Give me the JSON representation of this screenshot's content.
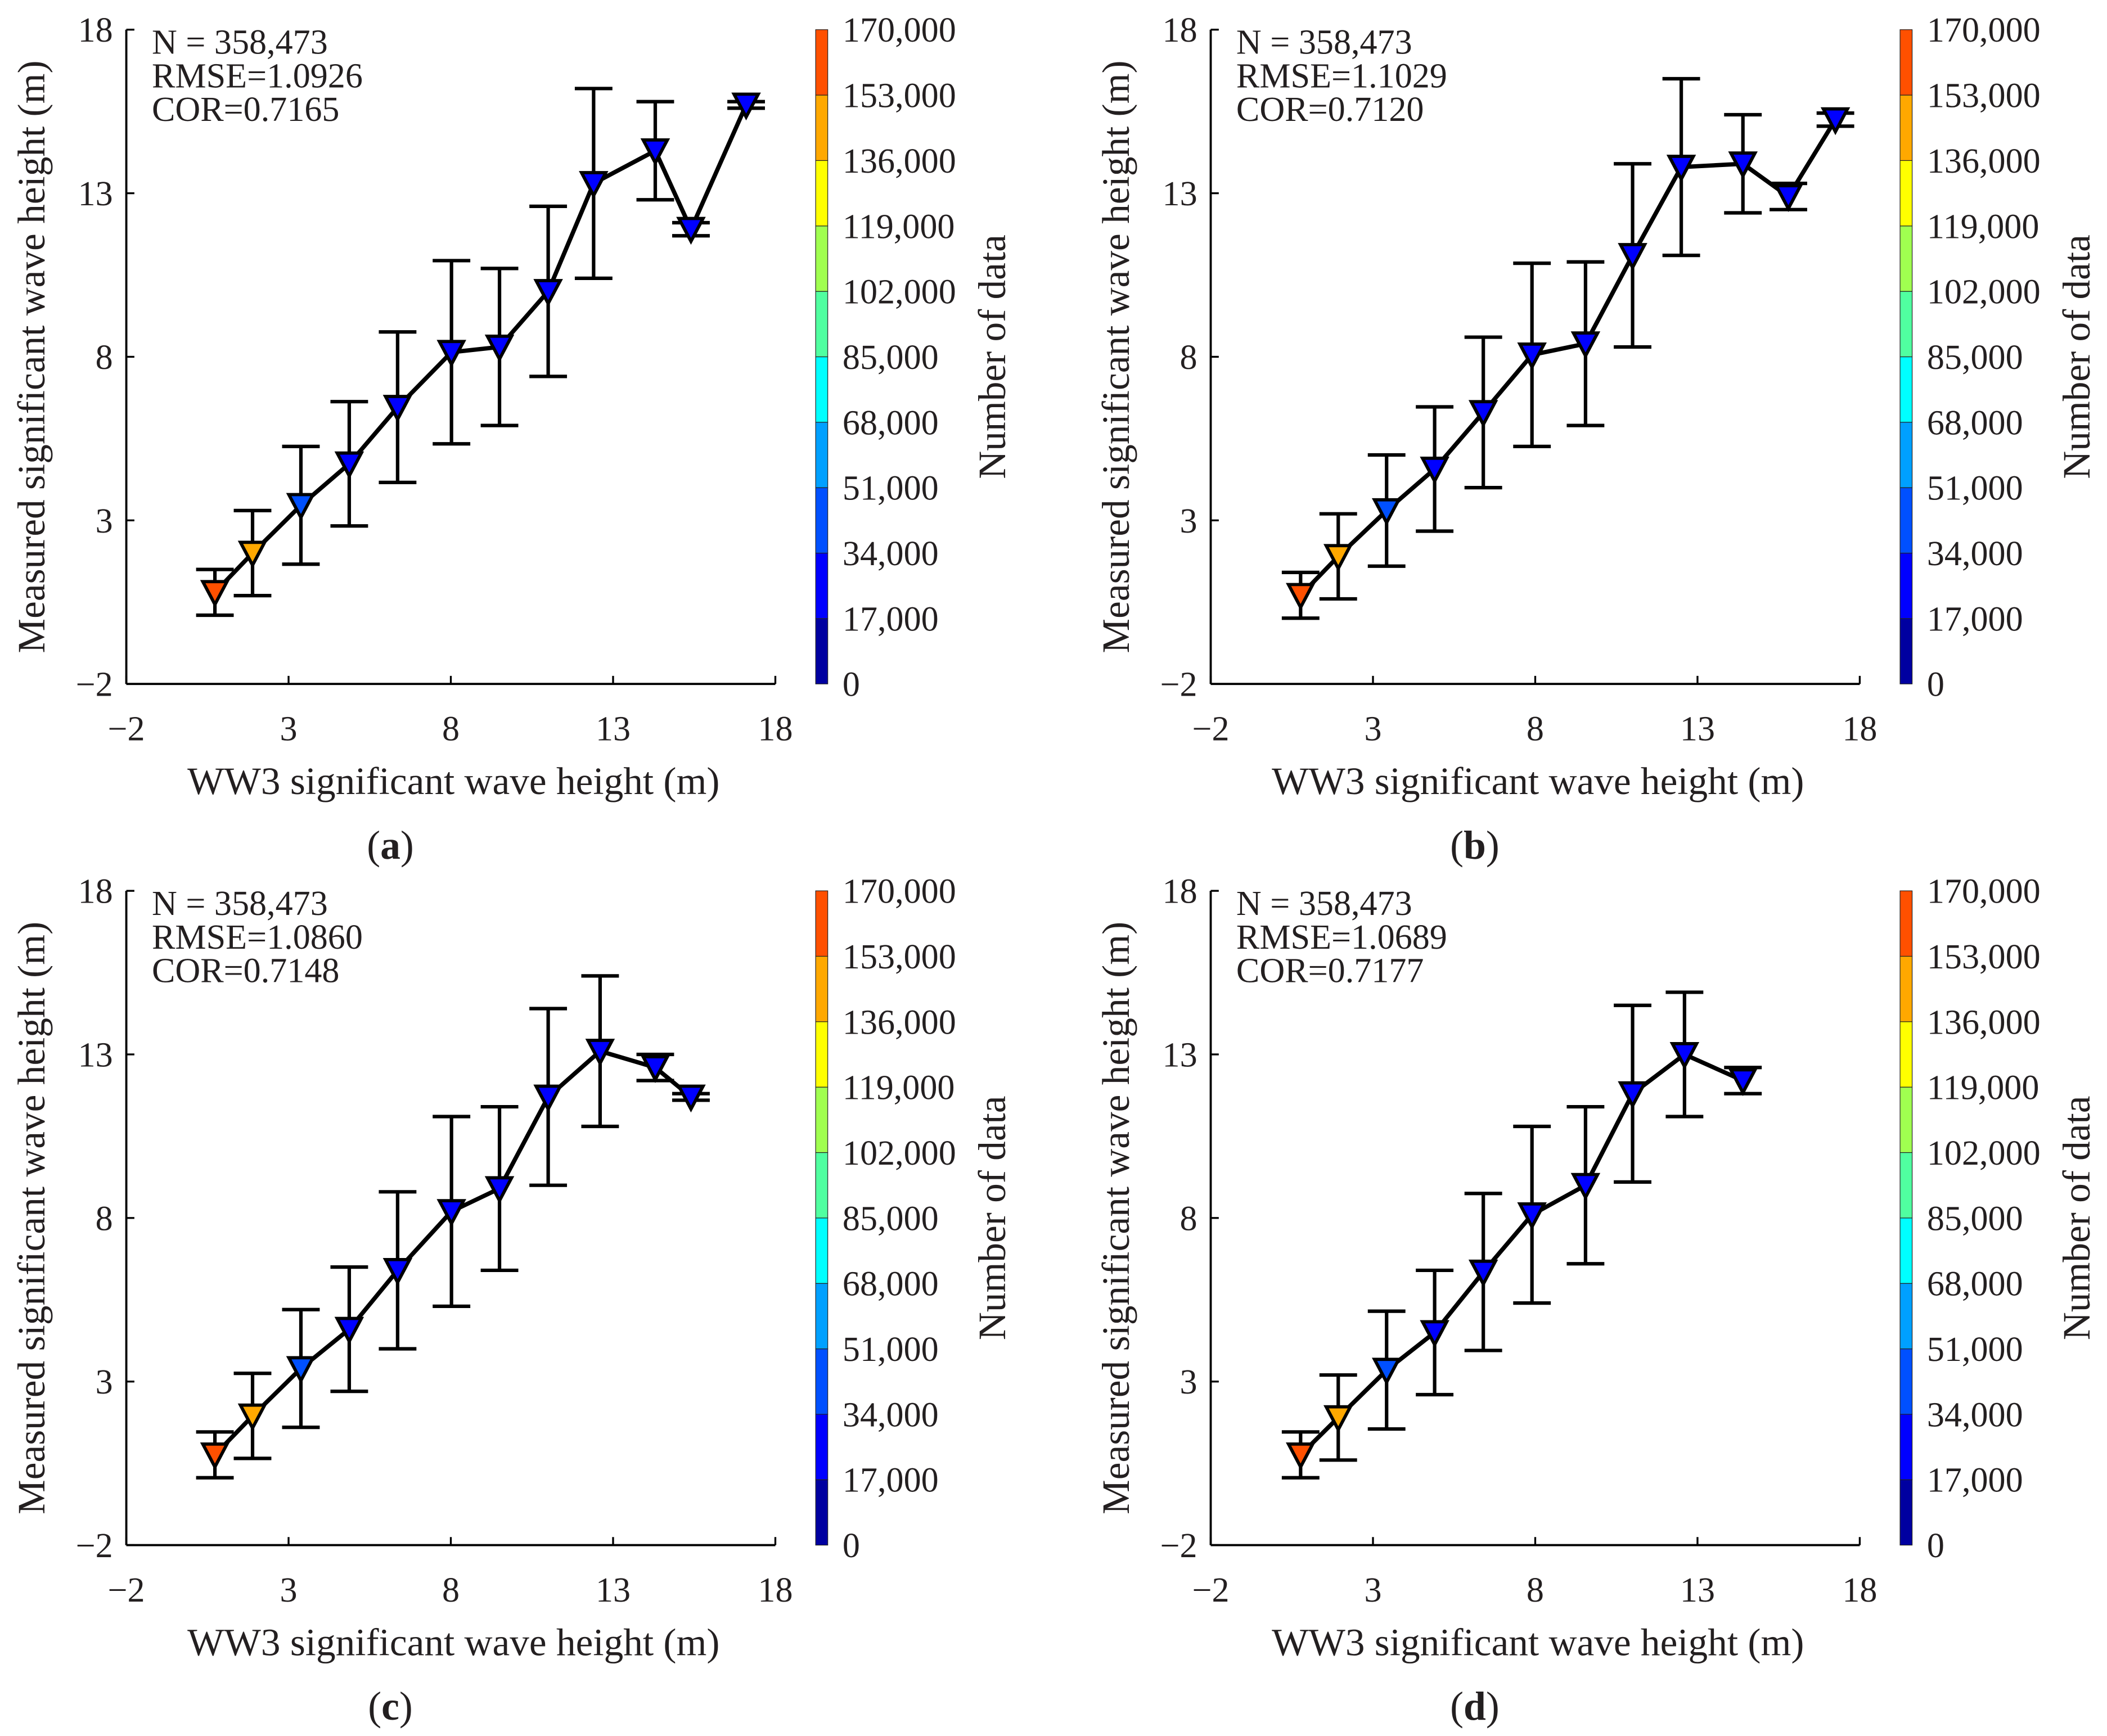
{
  "colorbar": {
    "label": "Number of data",
    "ticks": [
      "0",
      "17,000",
      "34,000",
      "51,000",
      "68,000",
      "85,000",
      "102,000",
      "119,000",
      "136,000",
      "153,000",
      "170,000"
    ],
    "colors": [
      "#0000a0",
      "#0000ff",
      "#0050ff",
      "#00a0ff",
      "#00ffff",
      "#50ffa0",
      "#a0ff50",
      "#ffff00",
      "#ffa800",
      "#ff5000"
    ]
  },
  "chart_data": [
    {
      "type": "line",
      "panel_label": "a",
      "xlabel": "WW3 significant wave height (m)",
      "ylabel": "Measured significant wave height (m)",
      "xlim": [
        -2,
        18
      ],
      "ylim": [
        -2,
        18
      ],
      "xticks": [
        "−2",
        "3",
        "8",
        "13",
        "18"
      ],
      "yticks": [
        "−2",
        "3",
        "8",
        "13",
        "18"
      ],
      "stats": [
        "N = 358,473",
        "RMSE=1.0926",
        "COR=0.7165"
      ],
      "points": [
        {
          "x": 0.73,
          "y": 0.8,
          "err": 0.7,
          "color": "#ff5000"
        },
        {
          "x": 1.89,
          "y": 2.0,
          "err": 1.3,
          "color": "#ffa800"
        },
        {
          "x": 3.38,
          "y": 3.46,
          "err": 1.8,
          "color": "#0050ff"
        },
        {
          "x": 4.87,
          "y": 4.73,
          "err": 1.9,
          "color": "#0000ff"
        },
        {
          "x": 6.36,
          "y": 6.46,
          "err": 2.3,
          "color": "#0000ff"
        },
        {
          "x": 8.02,
          "y": 8.14,
          "err": 2.8,
          "color": "#0000ff"
        },
        {
          "x": 9.5,
          "y": 8.3,
          "err": 2.4,
          "color": "#0000ff"
        },
        {
          "x": 11.0,
          "y": 10.0,
          "err": 2.6,
          "color": "#0000ff"
        },
        {
          "x": 12.4,
          "y": 13.3,
          "err": 2.9,
          "color": "#0000ff"
        },
        {
          "x": 14.3,
          "y": 14.3,
          "err": 1.5,
          "color": "#0000ff"
        },
        {
          "x": 15.4,
          "y": 11.9,
          "err": 0.2,
          "color": "#0000ff"
        },
        {
          "x": 17.1,
          "y": 15.7,
          "err": 0.1,
          "color": "#0000ff"
        }
      ]
    },
    {
      "type": "line",
      "panel_label": "b",
      "xlabel": "WW3 significant wave height (m)",
      "ylabel": "Measured significant wave height (m)",
      "xlim": [
        -2,
        18
      ],
      "ylim": [
        -2,
        18
      ],
      "xticks": [
        "−2",
        "3",
        "8",
        "13",
        "18"
      ],
      "yticks": [
        "−2",
        "3",
        "8",
        "13",
        "18"
      ],
      "stats": [
        "N = 358,473",
        "RMSE=1.1029",
        "COR=0.7120"
      ],
      "points": [
        {
          "x": 0.77,
          "y": 0.71,
          "err": 0.7,
          "color": "#ff5000"
        },
        {
          "x": 1.93,
          "y": 1.9,
          "err": 1.3,
          "color": "#ffa800"
        },
        {
          "x": 3.42,
          "y": 3.3,
          "err": 1.7,
          "color": "#0050ff"
        },
        {
          "x": 4.9,
          "y": 4.57,
          "err": 1.9,
          "color": "#0000ff"
        },
        {
          "x": 6.4,
          "y": 6.3,
          "err": 2.3,
          "color": "#0000ff"
        },
        {
          "x": 7.9,
          "y": 8.06,
          "err": 2.8,
          "color": "#0000ff"
        },
        {
          "x": 9.55,
          "y": 8.4,
          "err": 2.5,
          "color": "#0000ff"
        },
        {
          "x": 11.0,
          "y": 11.1,
          "err": 2.8,
          "color": "#0000ff"
        },
        {
          "x": 12.5,
          "y": 13.8,
          "err": 2.7,
          "color": "#0000ff"
        },
        {
          "x": 14.4,
          "y": 13.9,
          "err": 1.5,
          "color": "#0000ff"
        },
        {
          "x": 15.8,
          "y": 12.9,
          "err": 0.4,
          "color": "#0000ff"
        },
        {
          "x": 17.25,
          "y": 15.25,
          "err": 0.2,
          "color": "#0000ff"
        }
      ]
    },
    {
      "type": "line",
      "panel_label": "c",
      "xlabel": "WW3 significant wave height (m)",
      "ylabel": "Measured significant wave height (m)",
      "xlim": [
        -2,
        18
      ],
      "ylim": [
        -2,
        18
      ],
      "xticks": [
        "−2",
        "3",
        "8",
        "13",
        "18"
      ],
      "yticks": [
        "−2",
        "3",
        "8",
        "13",
        "18"
      ],
      "stats": [
        "N = 358,473",
        "RMSE=1.0860",
        "COR=0.7148"
      ],
      "points": [
        {
          "x": 0.73,
          "y": 0.76,
          "err": 0.7,
          "color": "#ff5000"
        },
        {
          "x": 1.89,
          "y": 1.95,
          "err": 1.3,
          "color": "#ffa800"
        },
        {
          "x": 3.38,
          "y": 3.4,
          "err": 1.8,
          "color": "#0050ff"
        },
        {
          "x": 4.87,
          "y": 4.6,
          "err": 1.9,
          "color": "#0000ff"
        },
        {
          "x": 6.36,
          "y": 6.4,
          "err": 2.4,
          "color": "#0000ff"
        },
        {
          "x": 8.02,
          "y": 8.2,
          "err": 2.9,
          "color": "#0000ff"
        },
        {
          "x": 9.5,
          "y": 8.9,
          "err": 2.5,
          "color": "#0000ff"
        },
        {
          "x": 11.0,
          "y": 11.7,
          "err": 2.7,
          "color": "#0000ff"
        },
        {
          "x": 12.6,
          "y": 13.1,
          "err": 2.3,
          "color": "#0000ff"
        },
        {
          "x": 14.3,
          "y": 12.6,
          "err": 0.4,
          "color": "#0000ff"
        },
        {
          "x": 15.4,
          "y": 11.7,
          "err": 0.1,
          "color": "#0000ff"
        }
      ]
    },
    {
      "type": "line",
      "panel_label": "d",
      "xlabel": "WW3 significant wave height (m)",
      "ylabel": "Measured significant wave height (m)",
      "xlim": [
        -2,
        18
      ],
      "ylim": [
        -2,
        18
      ],
      "xticks": [
        "−2",
        "3",
        "8",
        "13",
        "18"
      ],
      "yticks": [
        "−2",
        "3",
        "8",
        "13",
        "18"
      ],
      "stats": [
        "N = 358,473",
        "RMSE=1.0689",
        "COR=0.7177"
      ],
      "points": [
        {
          "x": 0.77,
          "y": 0.76,
          "err": 0.7,
          "color": "#ff5000"
        },
        {
          "x": 1.93,
          "y": 1.9,
          "err": 1.3,
          "color": "#ffa800"
        },
        {
          "x": 3.42,
          "y": 3.35,
          "err": 1.8,
          "color": "#0050ff"
        },
        {
          "x": 4.9,
          "y": 4.5,
          "err": 1.9,
          "color": "#0000ff"
        },
        {
          "x": 6.4,
          "y": 6.35,
          "err": 2.4,
          "color": "#0000ff"
        },
        {
          "x": 7.9,
          "y": 8.1,
          "err": 2.7,
          "color": "#0000ff"
        },
        {
          "x": 9.55,
          "y": 9.0,
          "err": 2.4,
          "color": "#0000ff"
        },
        {
          "x": 11.0,
          "y": 11.8,
          "err": 2.7,
          "color": "#0000ff"
        },
        {
          "x": 12.6,
          "y": 13.0,
          "err": 1.9,
          "color": "#0000ff"
        },
        {
          "x": 14.4,
          "y": 12.2,
          "err": 0.4,
          "color": "#0000ff"
        }
      ]
    }
  ]
}
